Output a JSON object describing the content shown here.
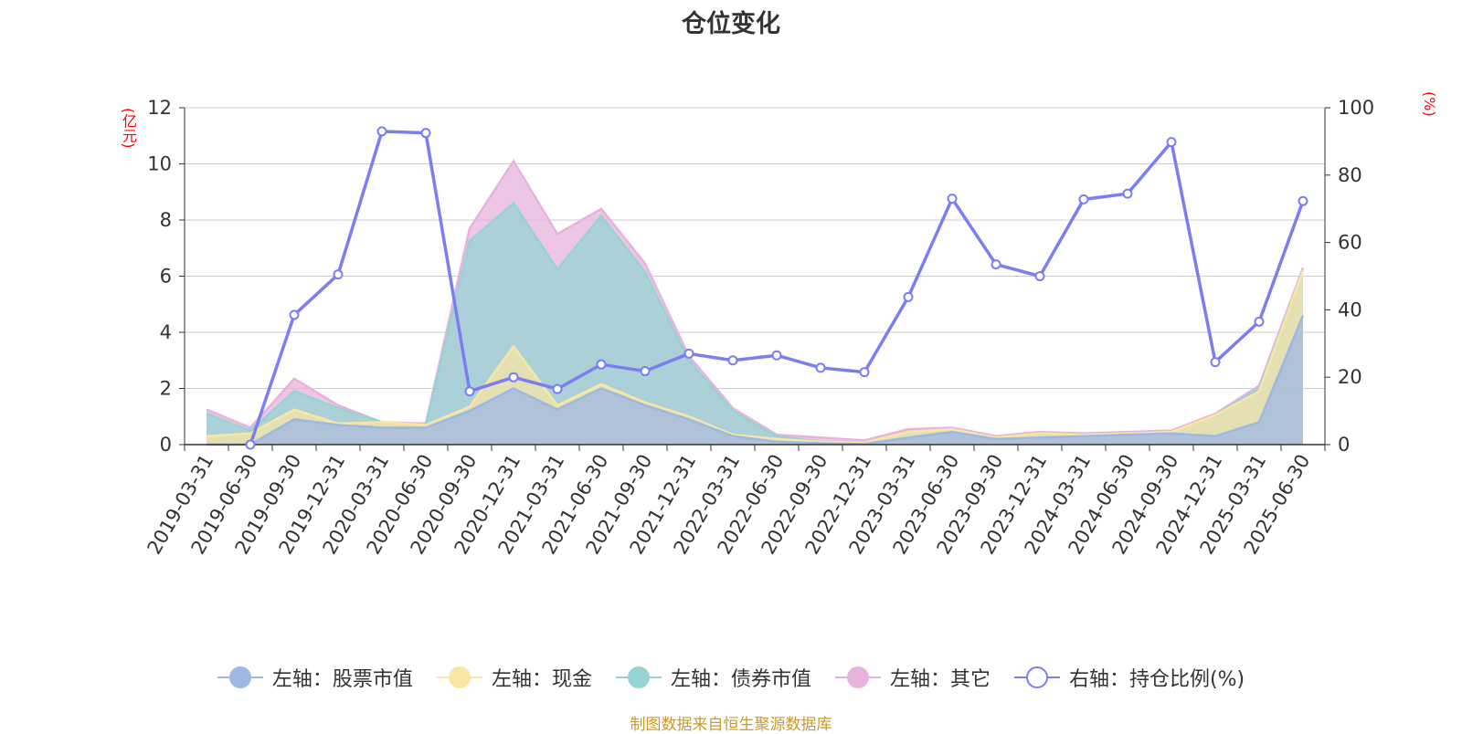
{
  "page_title": "仓位变化",
  "units": {
    "left": "(亿元)",
    "right": "(%)"
  },
  "source_note": "制图数据来自恒生聚源数据库",
  "legend": [
    {
      "label": "左轴：股票市值",
      "color": "#9cb8e3",
      "icon": "filled-circle"
    },
    {
      "label": "左轴：现金",
      "color": "#f8e6a5",
      "icon": "filled-circle"
    },
    {
      "label": "左轴：债券市值",
      "color": "#96d3d3",
      "icon": "filled-circle"
    },
    {
      "label": "左轴：其它",
      "color": "#e7b3dc",
      "icon": "filled-circle"
    },
    {
      "label": "右轴：持仓比例(%)",
      "color": "#7b7ef0",
      "icon": "hollow-circle"
    }
  ],
  "chart_data": {
    "type": "area",
    "stacked": true,
    "title": "仓位变化",
    "categories": [
      "2019-03-31",
      "2019-06-30",
      "2019-09-30",
      "2019-12-31",
      "2020-03-31",
      "2020-06-30",
      "2020-09-30",
      "2020-12-31",
      "2021-03-31",
      "2021-06-30",
      "2021-09-30",
      "2021-12-31",
      "2022-03-31",
      "2022-06-30",
      "2022-09-30",
      "2022-12-31",
      "2023-03-31",
      "2023-06-30",
      "2023-09-30",
      "2023-12-31",
      "2024-03-31",
      "2024-06-30",
      "2024-09-30",
      "2024-12-31",
      "2025-03-31",
      "2025-06-30"
    ],
    "y_left": {
      "unit": "(亿元)",
      "min": 0,
      "max": 12,
      "ticks": [
        0,
        2,
        4,
        6,
        8,
        10,
        12
      ]
    },
    "y_right": {
      "unit": "(%)",
      "min": 0,
      "max": 100,
      "ticks": [
        0,
        20,
        40,
        60,
        80,
        100
      ]
    },
    "grid": true,
    "legend_position": "bottom",
    "series": [
      {
        "name": "左轴：股票市值",
        "axis": "left",
        "type": "area",
        "color": "#9cb8e3",
        "values": [
          0,
          0,
          0.9,
          0.7,
          0.6,
          0.6,
          1.2,
          2.0,
          1.25,
          2.0,
          1.4,
          0.9,
          0.3,
          0.1,
          0.05,
          0.02,
          0.25,
          0.45,
          0.2,
          0.25,
          0.3,
          0.35,
          0.4,
          0.3,
          0.8,
          4.6
        ]
      },
      {
        "name": "左轴：现金",
        "axis": "left",
        "type": "area",
        "color": "#f8e6a5",
        "values": [
          0.3,
          0.4,
          0.35,
          0.05,
          0.2,
          0.1,
          0.15,
          1.5,
          0.15,
          0.15,
          0.1,
          0.1,
          0.05,
          0.1,
          0.05,
          0.05,
          0.2,
          0.1,
          0.05,
          0.15,
          0.05,
          0.05,
          0.05,
          0.75,
          1.1,
          1.6
        ]
      },
      {
        "name": "左轴：债券市值",
        "axis": "left",
        "type": "area",
        "color": "#96d3d3",
        "values": [
          0.8,
          0.1,
          0.65,
          0.55,
          0,
          0,
          5.9,
          5.1,
          4.85,
          6.0,
          4.65,
          2.0,
          0.85,
          0.1,
          0,
          0,
          0,
          0,
          0,
          0,
          0,
          0,
          0,
          0,
          0.1,
          0
        ]
      },
      {
        "name": "左轴：其它",
        "axis": "left",
        "type": "area",
        "color": "#e7b3dc",
        "values": [
          0.15,
          0.1,
          0.45,
          0.1,
          0,
          0.05,
          0.45,
          1.5,
          1.25,
          0.25,
          0.3,
          0.15,
          0.1,
          0.05,
          0.15,
          0.08,
          0.1,
          0.05,
          0.05,
          0.05,
          0.05,
          0.05,
          0.05,
          0.05,
          0.1,
          0.1
        ]
      },
      {
        "name": "右轴：持仓比例(%)",
        "axis": "right",
        "type": "line",
        "color": "#7b7ef0",
        "values": [
          null,
          0,
          38.5,
          50.5,
          93,
          92.5,
          15.8,
          20,
          16.5,
          23.8,
          21.8,
          27,
          25,
          26.5,
          22.8,
          21.5,
          43.8,
          73,
          53.5,
          50,
          72.8,
          74.5,
          89.8,
          24.5,
          36.5,
          72.3
        ]
      }
    ]
  }
}
